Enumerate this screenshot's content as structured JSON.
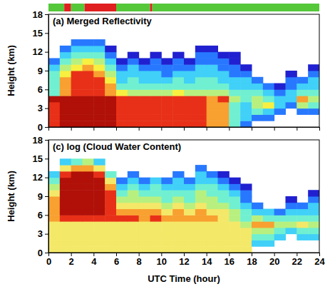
{
  "chart_data": [
    {
      "type": "heatmap",
      "title": "(a) Merged Reflectivity",
      "ylabel": "Height (km)",
      "xlim": [
        0,
        24
      ],
      "ylim": [
        0,
        18
      ],
      "xticks": [
        0,
        2,
        4,
        6,
        8,
        10,
        12,
        14,
        16,
        18,
        20,
        22,
        24
      ],
      "yticks": [
        0,
        3,
        6,
        9,
        12,
        15,
        18
      ],
      "tick_labels": "y",
      "zlim": [
        1,
        9
      ],
      "colorscale": [
        "#2020d0",
        "#2878ff",
        "#40d0f8",
        "#70f0d0",
        "#b8f080",
        "#f8f040",
        "#f8a030",
        "#e83018",
        "#b01008"
      ],
      "flag_bar": [
        {
          "start": 0,
          "end": 1.4,
          "color": "#55c83a"
        },
        {
          "start": 1.4,
          "end": 2.0,
          "color": "#e02020"
        },
        {
          "start": 2.0,
          "end": 3.2,
          "color": "#55c83a"
        },
        {
          "start": 3.2,
          "end": 6.0,
          "color": "#e02020"
        },
        {
          "start": 6.0,
          "end": 9.0,
          "color": "#55c83a"
        },
        {
          "start": 9.0,
          "end": 9.2,
          "color": "#e02020"
        },
        {
          "start": 9.2,
          "end": 24,
          "color": "#55c83a"
        }
      ],
      "x": [
        0,
        1,
        2,
        3,
        4,
        5,
        6,
        7,
        8,
        9,
        10,
        11,
        12,
        13,
        14,
        15,
        16,
        17,
        18,
        19,
        20,
        21,
        22,
        23,
        24
      ],
      "y": [
        0,
        1,
        2,
        3,
        4,
        5,
        6,
        7,
        8,
        9,
        10,
        11,
        12,
        13,
        14,
        15,
        16,
        17,
        18
      ],
      "z": [
        [
          8,
          9,
          9,
          9,
          9,
          9,
          8,
          8,
          8,
          8,
          8,
          8,
          8,
          8,
          7,
          7,
          4,
          2,
          null,
          null,
          null,
          null,
          null,
          null
        ],
        [
          8,
          9,
          9,
          9,
          9,
          9,
          8,
          8,
          8,
          8,
          8,
          8,
          8,
          8,
          7,
          7,
          4,
          3,
          2,
          2,
          null,
          null,
          null,
          null
        ],
        [
          8,
          9,
          9,
          9,
          9,
          9,
          8,
          8,
          8,
          8,
          8,
          8,
          8,
          8,
          7,
          7,
          4,
          3,
          4,
          3,
          2,
          null,
          2,
          2
        ],
        [
          8,
          9,
          9,
          9,
          9,
          9,
          8,
          8,
          8,
          8,
          8,
          8,
          8,
          8,
          7,
          7,
          4,
          3,
          5,
          6,
          3,
          2,
          5,
          4
        ],
        [
          9,
          9,
          9,
          9,
          9,
          9,
          8,
          8,
          8,
          8,
          8,
          8,
          8,
          8,
          7,
          8,
          5,
          4,
          5,
          4,
          3,
          3,
          7,
          5
        ],
        [
          4,
          7,
          8,
          8,
          8,
          7,
          6,
          5,
          5,
          5,
          5,
          6,
          5,
          5,
          5,
          5,
          4,
          4,
          4,
          3,
          2,
          3,
          4,
          4
        ],
        [
          4,
          7,
          8,
          8,
          8,
          7,
          4,
          4,
          4,
          4,
          4,
          4,
          4,
          4,
          4,
          4,
          3,
          3,
          3,
          2,
          1,
          2,
          3,
          3
        ],
        [
          4,
          7,
          8,
          8,
          8,
          6,
          3,
          4,
          3,
          3,
          3,
          4,
          3,
          4,
          4,
          3,
          3,
          3,
          2,
          null,
          null,
          2,
          2,
          3
        ],
        [
          4,
          6,
          8,
          8,
          7,
          5,
          3,
          3,
          3,
          3,
          2,
          3,
          3,
          3,
          3,
          3,
          2,
          2,
          null,
          null,
          null,
          1,
          null,
          2
        ],
        [
          3,
          5,
          6,
          7,
          6,
          4,
          2,
          3,
          2,
          2,
          2,
          2,
          2,
          3,
          3,
          2,
          2,
          1,
          null,
          null,
          null,
          null,
          null,
          1
        ],
        [
          2,
          4,
          5,
          6,
          5,
          3,
          1,
          2,
          1,
          2,
          1,
          2,
          1,
          2,
          2,
          2,
          1,
          null,
          null,
          null,
          null,
          null,
          null,
          null
        ],
        [
          null,
          3,
          4,
          4,
          4,
          2,
          null,
          1,
          null,
          1,
          null,
          1,
          null,
          2,
          2,
          1,
          1,
          null,
          null,
          null,
          null,
          null,
          null,
          null
        ],
        [
          null,
          2,
          3,
          3,
          3,
          1,
          null,
          null,
          null,
          null,
          null,
          null,
          null,
          1,
          1,
          null,
          null,
          null,
          null,
          null,
          null,
          null,
          null,
          null
        ],
        [
          null,
          null,
          2,
          2,
          2,
          null,
          null,
          null,
          null,
          null,
          null,
          null,
          null,
          null,
          null,
          null,
          null,
          null,
          null,
          null,
          null,
          null,
          null,
          null
        ],
        [
          null,
          null,
          null,
          null,
          null,
          null,
          null,
          null,
          null,
          null,
          null,
          null,
          null,
          null,
          null,
          null,
          null,
          null,
          null,
          null,
          null,
          null,
          null,
          null
        ],
        [
          null,
          null,
          null,
          null,
          null,
          null,
          null,
          null,
          null,
          null,
          null,
          null,
          null,
          null,
          null,
          null,
          null,
          null,
          null,
          null,
          null,
          null,
          null,
          null
        ],
        [
          null,
          null,
          null,
          null,
          null,
          null,
          null,
          null,
          null,
          null,
          null,
          null,
          null,
          null,
          null,
          null,
          null,
          null,
          null,
          null,
          null,
          null,
          null,
          null
        ],
        [
          null,
          null,
          null,
          null,
          null,
          null,
          null,
          null,
          null,
          null,
          null,
          null,
          null,
          null,
          null,
          null,
          null,
          null,
          null,
          null,
          null,
          null,
          null,
          null
        ]
      ]
    },
    {
      "type": "heatmap",
      "title": "(c) log (Cloud Water Content)",
      "ylabel": "Height (km)",
      "xlabel": "UTC Time (hour)",
      "xlim": [
        0,
        24
      ],
      "ylim": [
        0,
        18
      ],
      "xticks": [
        0,
        2,
        4,
        6,
        8,
        10,
        12,
        14,
        16,
        18,
        20,
        22,
        24
      ],
      "yticks": [
        0,
        3,
        6,
        9,
        12,
        15,
        18
      ],
      "zlim": [
        1,
        9
      ],
      "colorscale": [
        "#2020d0",
        "#2878ff",
        "#40d0f8",
        "#70f0d0",
        "#b8f080",
        "#f4e868",
        "#f8a030",
        "#e83018",
        "#b01008"
      ],
      "x": [
        0,
        1,
        2,
        3,
        4,
        5,
        6,
        7,
        8,
        9,
        10,
        11,
        12,
        13,
        14,
        15,
        16,
        17,
        18,
        19,
        20,
        21,
        22,
        23,
        24
      ],
      "y": [
        0,
        1,
        2,
        3,
        4,
        5,
        6,
        7,
        8,
        9,
        10,
        11,
        12,
        13,
        14,
        15,
        16,
        17,
        18
      ],
      "z": [
        [
          6,
          6,
          6,
          6,
          6,
          6,
          6,
          6,
          6,
          6,
          6,
          6,
          6,
          6,
          6,
          6,
          6,
          6,
          null,
          null,
          null,
          null,
          null,
          null
        ],
        [
          6,
          6,
          6,
          6,
          6,
          6,
          6,
          6,
          6,
          6,
          6,
          6,
          6,
          6,
          6,
          6,
          6,
          6,
          3,
          3,
          null,
          null,
          null,
          null
        ],
        [
          6,
          6,
          6,
          6,
          6,
          6,
          6,
          6,
          6,
          6,
          6,
          6,
          6,
          6,
          6,
          6,
          6,
          6,
          4,
          4,
          3,
          null,
          3,
          3
        ],
        [
          6,
          6,
          6,
          6,
          6,
          6,
          6,
          6,
          6,
          6,
          6,
          6,
          6,
          6,
          6,
          6,
          6,
          6,
          5,
          5,
          4,
          3,
          4,
          4
        ],
        [
          6,
          6,
          6,
          6,
          6,
          6,
          6,
          6,
          6,
          6,
          6,
          6,
          6,
          6,
          6,
          6,
          6,
          5,
          7,
          7,
          5,
          5,
          6,
          5
        ],
        [
          7,
          8,
          8,
          8,
          8,
          8,
          8,
          8,
          7,
          8,
          7,
          7,
          7,
          7,
          7,
          6,
          5,
          4,
          5,
          4,
          4,
          4,
          4,
          4
        ],
        [
          7,
          9,
          9,
          9,
          9,
          8,
          7,
          7,
          7,
          7,
          6,
          7,
          6,
          7,
          6,
          6,
          5,
          4,
          3,
          3,
          2,
          3,
          3,
          3
        ],
        [
          7,
          9,
          9,
          9,
          9,
          8,
          6,
          6,
          6,
          6,
          5,
          6,
          5,
          6,
          5,
          5,
          4,
          3,
          2,
          null,
          null,
          2,
          2,
          3
        ],
        [
          7,
          9,
          9,
          9,
          9,
          8,
          5,
          5,
          5,
          5,
          4,
          5,
          4,
          5,
          5,
          4,
          4,
          2,
          null,
          null,
          null,
          1,
          null,
          2
        ],
        [
          6,
          9,
          9,
          9,
          9,
          8,
          4,
          5,
          4,
          4,
          4,
          4,
          4,
          5,
          4,
          4,
          3,
          2,
          null,
          null,
          null,
          null,
          null,
          1
        ],
        [
          5,
          9,
          9,
          9,
          9,
          7,
          3,
          4,
          3,
          4,
          3,
          3,
          3,
          4,
          4,
          3,
          2,
          1,
          null,
          null,
          null,
          null,
          null,
          null
        ],
        [
          4,
          9,
          9,
          9,
          9,
          6,
          2,
          3,
          2,
          3,
          2,
          3,
          2,
          3,
          3,
          2,
          1,
          null,
          null,
          null,
          null,
          null,
          null,
          null
        ],
        [
          3,
          8,
          9,
          9,
          8,
          4,
          null,
          2,
          null,
          null,
          null,
          2,
          null,
          3,
          2,
          1,
          null,
          null,
          null,
          null,
          null,
          null,
          null,
          null
        ],
        [
          null,
          6,
          7,
          7,
          6,
          null,
          null,
          null,
          null,
          null,
          null,
          null,
          null,
          2,
          null,
          null,
          null,
          null,
          null,
          null,
          null,
          null,
          null,
          null
        ],
        [
          null,
          3,
          4,
          5,
          3,
          null,
          null,
          null,
          null,
          null,
          null,
          null,
          null,
          null,
          null,
          null,
          null,
          null,
          null,
          null,
          null,
          null,
          null,
          null
        ],
        [
          null,
          null,
          null,
          null,
          null,
          null,
          null,
          null,
          null,
          null,
          null,
          null,
          null,
          null,
          null,
          null,
          null,
          null,
          null,
          null,
          null,
          null,
          null,
          null
        ],
        [
          null,
          null,
          null,
          null,
          null,
          null,
          null,
          null,
          null,
          null,
          null,
          null,
          null,
          null,
          null,
          null,
          null,
          null,
          null,
          null,
          null,
          null,
          null,
          null
        ],
        [
          null,
          null,
          null,
          null,
          null,
          null,
          null,
          null,
          null,
          null,
          null,
          null,
          null,
          null,
          null,
          null,
          null,
          null,
          null,
          null,
          null,
          null,
          null,
          null
        ]
      ]
    }
  ]
}
